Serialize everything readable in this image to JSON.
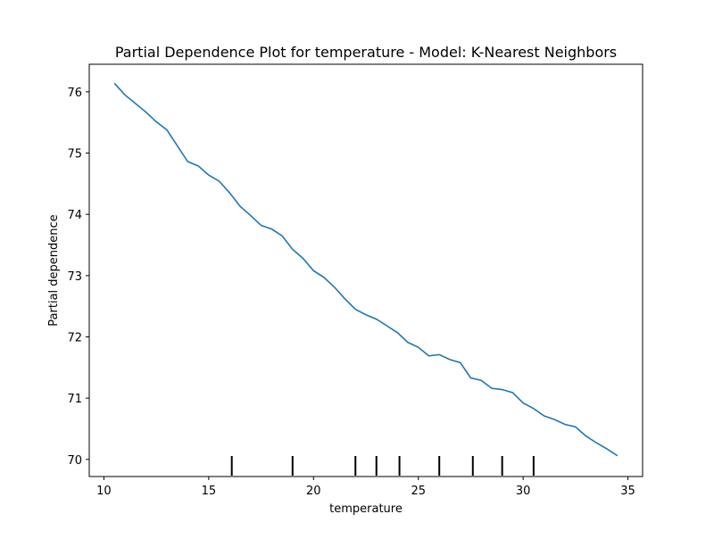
{
  "chart_data": {
    "type": "line",
    "title": "Partial Dependence Plot for temperature - Model: K-Nearest Neighbors",
    "xlabel": "temperature",
    "ylabel": "Partial dependence",
    "xlim": [
      9.3,
      35.7
    ],
    "ylim": [
      69.72,
      76.45
    ],
    "xticks": [
      10,
      15,
      20,
      25,
      30,
      35
    ],
    "yticks": [
      70,
      71,
      72,
      73,
      74,
      75,
      76
    ],
    "grid": false,
    "line_color": "#1f77b4",
    "series": [
      {
        "x": [
          10.5,
          11.0,
          11.5,
          12.0,
          12.5,
          13.0,
          13.5,
          14.0,
          14.5,
          15.0,
          15.5,
          16.0,
          16.5,
          17.0,
          17.5,
          18.0,
          18.5,
          19.0,
          19.5,
          20.0,
          20.5,
          21.0,
          21.5,
          22.0,
          22.5,
          23.0,
          23.5,
          24.0,
          24.5,
          25.0,
          25.5,
          26.0,
          26.5,
          27.0,
          27.5,
          28.0,
          28.5,
          29.0,
          29.5,
          30.0,
          30.5,
          31.0,
          31.5,
          32.0,
          32.5,
          33.0,
          33.5,
          34.0,
          34.5
        ],
        "y": [
          76.14,
          75.95,
          75.81,
          75.67,
          75.51,
          75.38,
          75.12,
          74.86,
          74.79,
          74.64,
          74.54,
          74.35,
          74.13,
          73.98,
          73.82,
          73.76,
          73.65,
          73.43,
          73.28,
          73.08,
          72.97,
          72.81,
          72.62,
          72.45,
          72.36,
          72.29,
          72.18,
          72.07,
          71.91,
          71.83,
          71.69,
          71.71,
          71.63,
          71.58,
          71.33,
          71.29,
          71.16,
          71.14,
          71.09,
          70.92,
          70.83,
          70.71,
          70.65,
          70.57,
          70.53,
          70.38,
          70.27,
          70.17,
          70.06
        ]
      }
    ],
    "rug": [
      16.1,
      19.0,
      22.0,
      23.0,
      24.1,
      26.0,
      27.6,
      29.0,
      30.5
    ]
  }
}
